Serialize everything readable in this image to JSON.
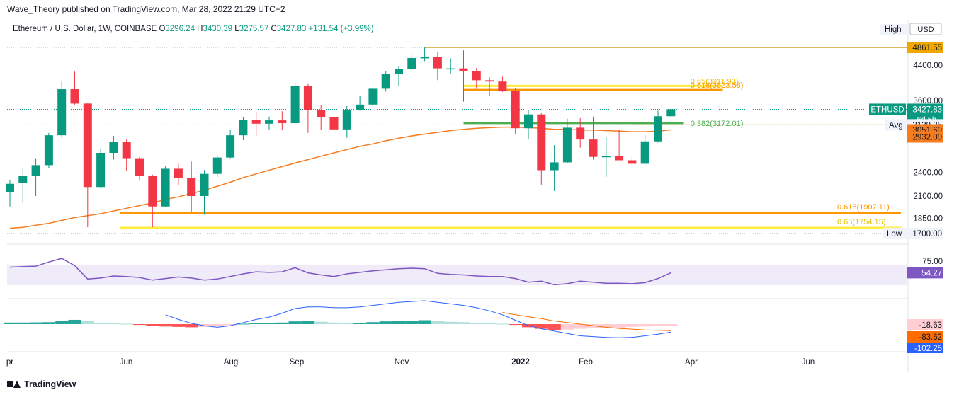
{
  "publisher": "Wave_Theory published on TradingView.com, Mar 28, 2022 21:29 UTC+2",
  "symbol": {
    "name": "Ethereum / U.S. Dollar, 1W, COINBASE",
    "o_label": "O",
    "o": "3296.24",
    "h_label": "H",
    "h": "3430.39",
    "l_label": "L",
    "l": "3275.57",
    "c_label": "C",
    "c": "3427.83",
    "change": "+131.54 (+3.99%)"
  },
  "brand": "TradingView",
  "colors": {
    "up": "#089981",
    "down": "#f23645",
    "ema": "#f57c1f",
    "fib": "#ff9800",
    "fib_yellow": "#ffeb3b",
    "green_line": "#4caf50",
    "rsi": "#7e57c2",
    "macd_line": "#2962ff",
    "signal": "#ff6d00"
  },
  "chart_data": [
    {
      "type": "candlestick",
      "title": "Ethereum / U.S. Dollar, 1W, COINBASE",
      "price_scale_ticks": [
        "4400.00",
        "3600.00",
        "2400.00",
        "2100.00",
        "1850.00"
      ],
      "price_labels": {
        "high": {
          "text": "High",
          "value": "4861.55"
        },
        "currency": "USD",
        "current": {
          "symbol": "ETHUSD",
          "value": "3427.83",
          "countdown": "6d 5h"
        },
        "avg": {
          "text": "Avg",
          "value": "3139.35"
        },
        "ema_a": "3051.60",
        "ema_b": "2932.00",
        "low": {
          "text": "Low",
          "value": "1700.00"
        }
      },
      "x_labels": [
        "pr",
        "Jun",
        "Aug",
        "Sep",
        "Nov",
        "2022",
        "Feb",
        "Apr",
        "Jun"
      ],
      "fib_levels": [
        {
          "label": "0.65(3911.93)",
          "value": 3911.93
        },
        {
          "label": "0.618(3823.58)",
          "value": 3823.58
        },
        {
          "label": "0.382(3172.01)",
          "value": 3172.01
        },
        {
          "label": "0.618(1907.11)",
          "value": 1907.11
        },
        {
          "label": "0.65(1754.15)",
          "value": 1754.15
        }
      ],
      "candles": [
        {
          "o": 2150,
          "h": 2300,
          "l": 1980,
          "c": 2250
        },
        {
          "o": 2260,
          "h": 2450,
          "l": 2020,
          "c": 2350
        },
        {
          "o": 2350,
          "h": 2600,
          "l": 2100,
          "c": 2500
        },
        {
          "o": 2500,
          "h": 3000,
          "l": 2460,
          "c": 2960
        },
        {
          "o": 2960,
          "h": 4030,
          "l": 2920,
          "c": 3840
        },
        {
          "o": 3840,
          "h": 4240,
          "l": 3520,
          "c": 3540
        },
        {
          "o": 3540,
          "h": 3560,
          "l": 1760,
          "c": 2210
        },
        {
          "o": 2210,
          "h": 2740,
          "l": 2200,
          "c": 2680
        },
        {
          "o": 2680,
          "h": 2950,
          "l": 2580,
          "c": 2850
        },
        {
          "o": 2850,
          "h": 2890,
          "l": 2420,
          "c": 2600
        },
        {
          "o": 2600,
          "h": 2620,
          "l": 2290,
          "c": 2350
        },
        {
          "o": 2350,
          "h": 2370,
          "l": 1760,
          "c": 1980
        },
        {
          "o": 1980,
          "h": 2490,
          "l": 1970,
          "c": 2450
        },
        {
          "o": 2450,
          "h": 2520,
          "l": 2230,
          "c": 2330
        },
        {
          "o": 2330,
          "h": 2550,
          "l": 1920,
          "c": 2100
        },
        {
          "o": 2100,
          "h": 2430,
          "l": 1890,
          "c": 2380
        },
        {
          "o": 2380,
          "h": 2640,
          "l": 2340,
          "c": 2610
        },
        {
          "o": 2610,
          "h": 3050,
          "l": 2600,
          "c": 2960
        },
        {
          "o": 2960,
          "h": 3280,
          "l": 2880,
          "c": 3230
        },
        {
          "o": 3230,
          "h": 3380,
          "l": 2950,
          "c": 3160
        },
        {
          "o": 3160,
          "h": 3290,
          "l": 3050,
          "c": 3220
        },
        {
          "o": 3220,
          "h": 3390,
          "l": 3050,
          "c": 3170
        },
        {
          "o": 3170,
          "h": 4000,
          "l": 3160,
          "c": 3910
        },
        {
          "o": 3910,
          "h": 3970,
          "l": 3000,
          "c": 3410
        },
        {
          "o": 3410,
          "h": 3510,
          "l": 3050,
          "c": 3280
        },
        {
          "o": 3280,
          "h": 3430,
          "l": 2740,
          "c": 3060
        },
        {
          "o": 3060,
          "h": 3490,
          "l": 2920,
          "c": 3420
        },
        {
          "o": 3420,
          "h": 3700,
          "l": 3400,
          "c": 3520
        },
        {
          "o": 3520,
          "h": 3880,
          "l": 3480,
          "c": 3850
        },
        {
          "o": 3850,
          "h": 4260,
          "l": 3790,
          "c": 4180
        },
        {
          "o": 4180,
          "h": 4380,
          "l": 3900,
          "c": 4300
        },
        {
          "o": 4300,
          "h": 4650,
          "l": 4260,
          "c": 4580
        },
        {
          "o": 4580,
          "h": 4861.55,
          "l": 4500,
          "c": 4600
        },
        {
          "o": 4600,
          "h": 4730,
          "l": 4040,
          "c": 4320
        },
        {
          "o": 4320,
          "h": 4570,
          "l": 4200,
          "c": 4320
        },
        {
          "o": 4320,
          "h": 4780,
          "l": 3580,
          "c": 4260
        },
        {
          "o": 4260,
          "h": 4330,
          "l": 3850,
          "c": 4040
        },
        {
          "o": 4040,
          "h": 4110,
          "l": 3690,
          "c": 4010
        },
        {
          "o": 4010,
          "h": 4120,
          "l": 3780,
          "c": 3800
        },
        {
          "o": 3800,
          "h": 3870,
          "l": 2980,
          "c": 3080
        },
        {
          "o": 3080,
          "h": 3410,
          "l": 2900,
          "c": 3330
        },
        {
          "o": 3330,
          "h": 3350,
          "l": 2240,
          "c": 2430
        },
        {
          "o": 2430,
          "h": 2800,
          "l": 2160,
          "c": 2540
        },
        {
          "o": 2540,
          "h": 3250,
          "l": 2520,
          "c": 3090
        },
        {
          "o": 3090,
          "h": 3260,
          "l": 2760,
          "c": 2890
        },
        {
          "o": 2890,
          "h": 3290,
          "l": 2580,
          "c": 2620
        },
        {
          "o": 2620,
          "h": 2930,
          "l": 2340,
          "c": 2630
        },
        {
          "o": 2630,
          "h": 3060,
          "l": 2570,
          "c": 2570
        },
        {
          "o": 2570,
          "h": 2620,
          "l": 2480,
          "c": 2520
        },
        {
          "o": 2520,
          "h": 2960,
          "l": 2510,
          "c": 2860
        },
        {
          "o": 2860,
          "h": 3400,
          "l": 2840,
          "c": 3296
        },
        {
          "o": 3296.24,
          "h": 3430.39,
          "l": 3275.57,
          "c": 3427.83
        }
      ],
      "ema": [
        1750,
        1760,
        1780,
        1800,
        1830,
        1860,
        1880,
        1900,
        1930,
        1960,
        1990,
        2020,
        2060,
        2090,
        2130,
        2170,
        2220,
        2270,
        2330,
        2380,
        2430,
        2480,
        2530,
        2580,
        2630,
        2680,
        2730,
        2780,
        2820,
        2870,
        2910,
        2950,
        2980,
        3010,
        3040,
        3060,
        3080,
        3090,
        3100,
        3100,
        3090,
        3080,
        3060,
        3060,
        3050,
        3050,
        3040,
        3030,
        3020,
        3020,
        3030,
        3051.6
      ]
    },
    {
      "type": "line",
      "title": "RSI",
      "price_scale_ticks": [
        "75.00"
      ],
      "value_label": "54.27",
      "band": [
        30,
        70
      ],
      "values": [
        65,
        66,
        67,
        75,
        82,
        68,
        42,
        44,
        48,
        47,
        45,
        40,
        43,
        46,
        44,
        40,
        42,
        47,
        52,
        56,
        55,
        56,
        64,
        54,
        50,
        47,
        52,
        55,
        58,
        60,
        62,
        63,
        62,
        53,
        51,
        50,
        48,
        47,
        47,
        43,
        36,
        38,
        31,
        33,
        38,
        36,
        34,
        34,
        33,
        35,
        43,
        54.27
      ]
    },
    {
      "type": "bar",
      "title": "MACD",
      "value_labels": [
        "-18.63",
        "-83.62",
        "-102.25"
      ],
      "histogram": [
        20,
        20,
        22,
        25,
        40,
        55,
        40,
        15,
        10,
        5,
        -10,
        -25,
        -30,
        -35,
        -40,
        -35,
        -30,
        -15,
        5,
        15,
        18,
        20,
        35,
        45,
        30,
        20,
        15,
        18,
        25,
        35,
        40,
        45,
        50,
        40,
        30,
        25,
        15,
        10,
        5,
        -10,
        -40,
        -60,
        -80,
        -70,
        -60,
        -55,
        -50,
        -45,
        -35,
        -30,
        -25,
        -18.63
      ],
      "macd": [
        null,
        null,
        null,
        null,
        null,
        null,
        null,
        null,
        null,
        null,
        null,
        null,
        120,
        60,
        10,
        -20,
        -40,
        -20,
        20,
        60,
        90,
        140,
        200,
        220,
        220,
        210,
        210,
        220,
        240,
        260,
        280,
        290,
        300,
        280,
        260,
        240,
        210,
        170,
        120,
        50,
        -20,
        -60,
        -90,
        -120,
        -150,
        -160,
        -170,
        -175,
        -170,
        -150,
        -130,
        -102.25
      ],
      "signal": [
        null,
        null,
        null,
        null,
        null,
        null,
        null,
        null,
        null,
        null,
        null,
        null,
        null,
        null,
        null,
        null,
        null,
        null,
        null,
        null,
        null,
        null,
        null,
        null,
        null,
        null,
        null,
        null,
        null,
        null,
        null,
        null,
        null,
        null,
        null,
        null,
        null,
        null,
        150,
        120,
        95,
        70,
        40,
        20,
        0,
        -20,
        -40,
        -55,
        -65,
        -75,
        -80,
        -83.62
      ]
    }
  ]
}
